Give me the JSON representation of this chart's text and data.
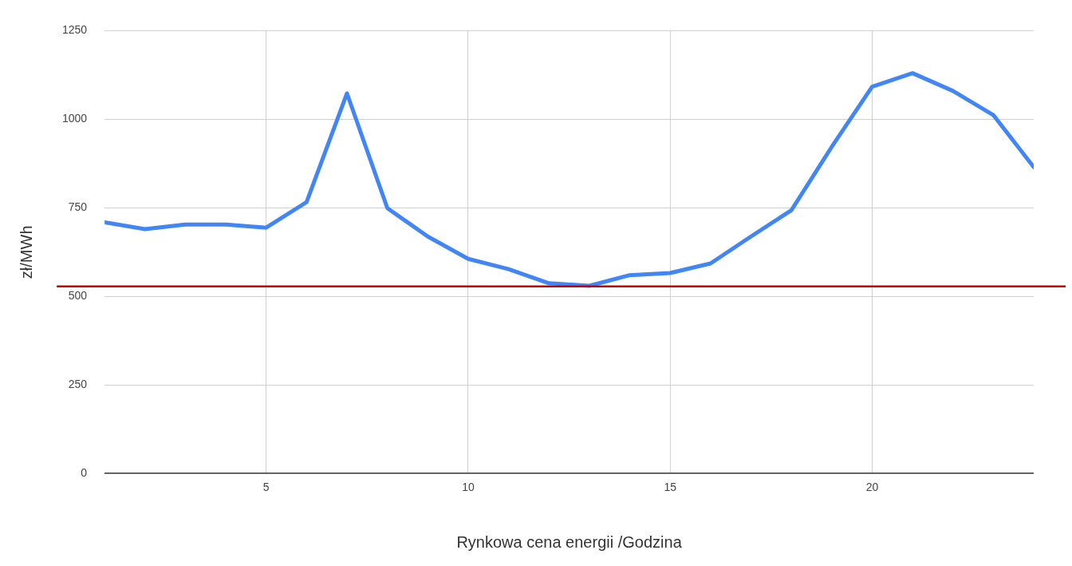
{
  "chart_data": {
    "type": "line",
    "xlabel": "Rynkowa cena energii /Godzina",
    "ylabel": "zł/MWh",
    "x": [
      1,
      2,
      3,
      4,
      5,
      6,
      7,
      8,
      9,
      10,
      11,
      12,
      13,
      14,
      15,
      16,
      17,
      18,
      19,
      20,
      21,
      22,
      23,
      24
    ],
    "series": [
      {
        "color": "#4285f4",
        "values": [
          709,
          690,
          703,
          703,
          694,
          766,
          1073,
          749,
          669,
          606,
          577,
          537,
          530,
          560,
          566,
          593,
          669,
          743,
          922,
          1092,
          1130,
          1080,
          1012,
          865
        ]
      }
    ],
    "xlim": [
      1,
      24
    ],
    "xticks": [
      5,
      10,
      15,
      20
    ],
    "ylim": [
      0,
      1250
    ],
    "yticks": [
      0,
      250,
      500,
      750,
      1000,
      1250
    ],
    "ref_lines": [
      {
        "axis": "y",
        "value": 528,
        "color": "#cc0000"
      }
    ],
    "grid": true,
    "legend": false,
    "marker": "none",
    "line_style": "solid"
  }
}
